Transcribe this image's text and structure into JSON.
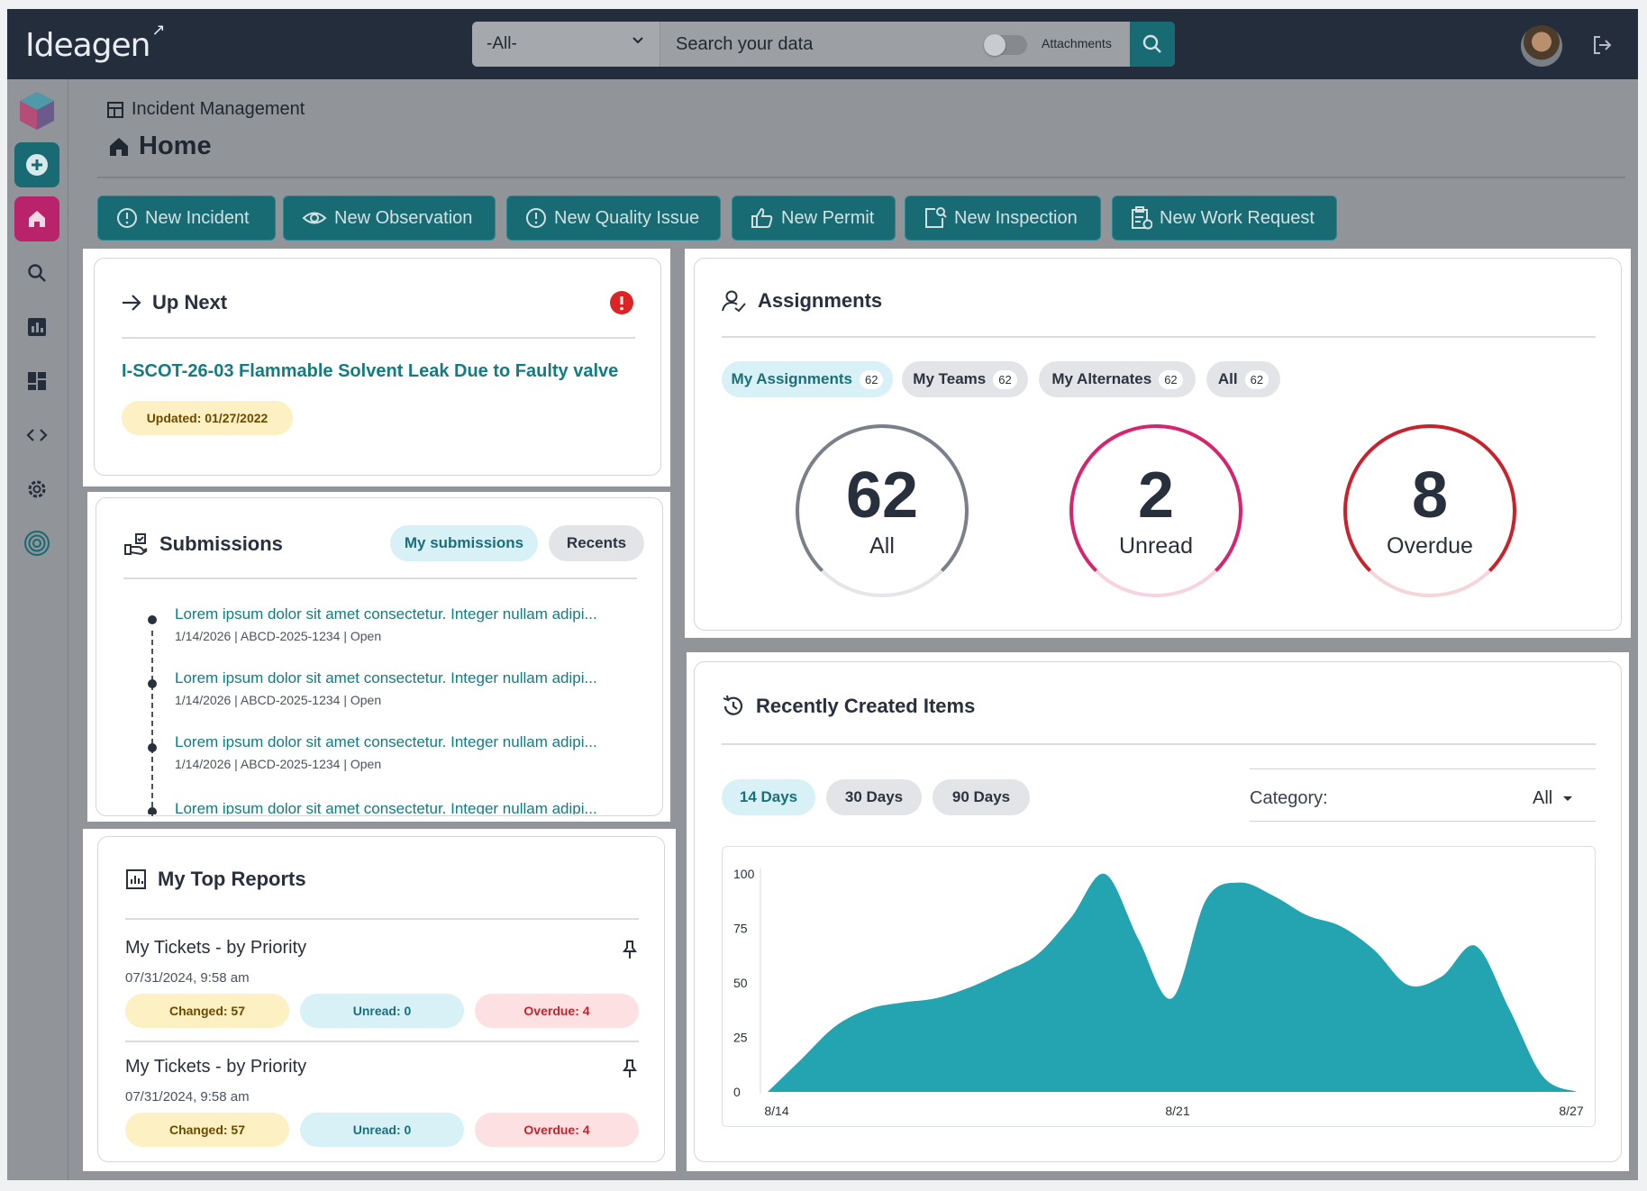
{
  "app": {
    "logo": "Ideagen"
  },
  "search": {
    "scope": "-All-",
    "placeholder": "Search your data",
    "attachments_label": "Attachments"
  },
  "breadcrumb": {
    "module": "Incident Management",
    "page": "Home"
  },
  "actions": [
    "New Incident",
    "New Observation",
    "New Quality Issue",
    "New Permit",
    "New Inspection",
    "New Work Request"
  ],
  "up_next": {
    "title": "Up Next",
    "item": "I-SCOT-26-03 Flammable Solvent Leak Due to Faulty valve",
    "updated": "Updated: 01/27/2022"
  },
  "submissions": {
    "title": "Submissions",
    "tabs": [
      "My submissions",
      "Recents"
    ],
    "items": [
      {
        "title": "Lorem ipsum dolor sit amet consectetur. Integer nullam adipi...",
        "meta": "1/14/2026 | ABCD-2025-1234 | Open"
      },
      {
        "title": "Lorem ipsum dolor sit amet consectetur. Integer nullam adipi...",
        "meta": "1/14/2026 | ABCD-2025-1234 | Open"
      },
      {
        "title": "Lorem ipsum dolor sit amet consectetur. Integer nullam adipi...",
        "meta": "1/14/2026 | ABCD-2025-1234 | Open"
      },
      {
        "title": "Lorem ipsum dolor sit amet consectetur. Integer nullam adipi...",
        "meta": ""
      }
    ]
  },
  "reports": {
    "title": "My Top Reports",
    "items": [
      {
        "name": "My Tickets - by Priority",
        "date": "07/31/2024, 9:58 am",
        "changed": "Changed: 57",
        "unread": "Unread: 0",
        "overdue": "Overdue: 4"
      },
      {
        "name": "My Tickets - by Priority",
        "date": "07/31/2024, 9:58 am",
        "changed": "Changed: 57",
        "unread": "Unread: 0",
        "overdue": "Overdue: 4"
      }
    ]
  },
  "assignments": {
    "title": "Assignments",
    "tabs": [
      {
        "label": "My Assignments",
        "count": "62"
      },
      {
        "label": "My Teams",
        "count": "62"
      },
      {
        "label": "My Alternates",
        "count": "62"
      },
      {
        "label": "All",
        "count": "62"
      }
    ],
    "rings": [
      {
        "value": "62",
        "label": "All",
        "color": "#7a8089"
      },
      {
        "value": "2",
        "label": "Unread",
        "color": "#d6246e"
      },
      {
        "value": "8",
        "label": "Overdue",
        "color": "#c8232c"
      }
    ]
  },
  "recent": {
    "title": "Recently Created Items",
    "ranges": [
      "14 Days",
      "30 Days",
      "90 Days"
    ],
    "category_label": "Category:",
    "category_value": "All"
  },
  "colors": {
    "accent": "#186a73",
    "chart_fill": "#24a3b1",
    "topbar": "#232d3b"
  },
  "chart_data": {
    "type": "area",
    "title": "",
    "xlabel": "",
    "ylabel": "",
    "ylim": [
      0,
      100
    ],
    "yticks": [
      0,
      25,
      50,
      75,
      100
    ],
    "xticks": [
      "8/14",
      "8/21",
      "8/27"
    ],
    "series": [
      {
        "values": [
          0,
          15,
          30,
          38,
          41,
          43,
          48,
          55,
          63,
          80,
          100,
          70,
          43,
          88,
          96,
          90,
          81,
          76,
          65,
          49,
          53,
          67,
          38,
          7,
          0
        ]
      }
    ]
  }
}
